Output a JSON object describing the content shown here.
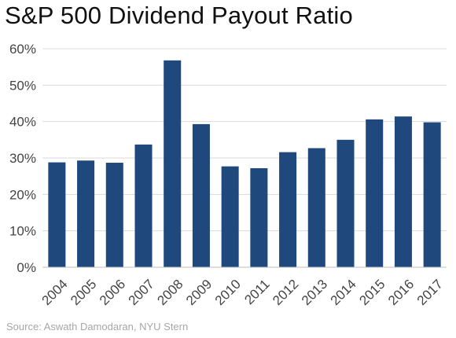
{
  "title": "S&P 500 Dividend Payout Ratio",
  "source": "Source: Aswath Damodaran, NYU Stern",
  "chart_data": {
    "type": "bar",
    "categories": [
      "2004",
      "2005",
      "2006",
      "2007",
      "2008",
      "2009",
      "2010",
      "2011",
      "2012",
      "2013",
      "2014",
      "2015",
      "2016",
      "2017"
    ],
    "values": [
      28.8,
      29.3,
      28.7,
      33.7,
      56.8,
      39.3,
      27.7,
      27.2,
      31.6,
      32.7,
      35.0,
      40.6,
      41.4,
      39.8
    ],
    "yticks": [
      "0%",
      "10%",
      "20%",
      "30%",
      "40%",
      "50%",
      "60%"
    ],
    "ylim": [
      0,
      60
    ],
    "ytick_step": 10,
    "grid": true,
    "bar_color": "#1f497d",
    "grid_color": "#d9d9d9"
  }
}
